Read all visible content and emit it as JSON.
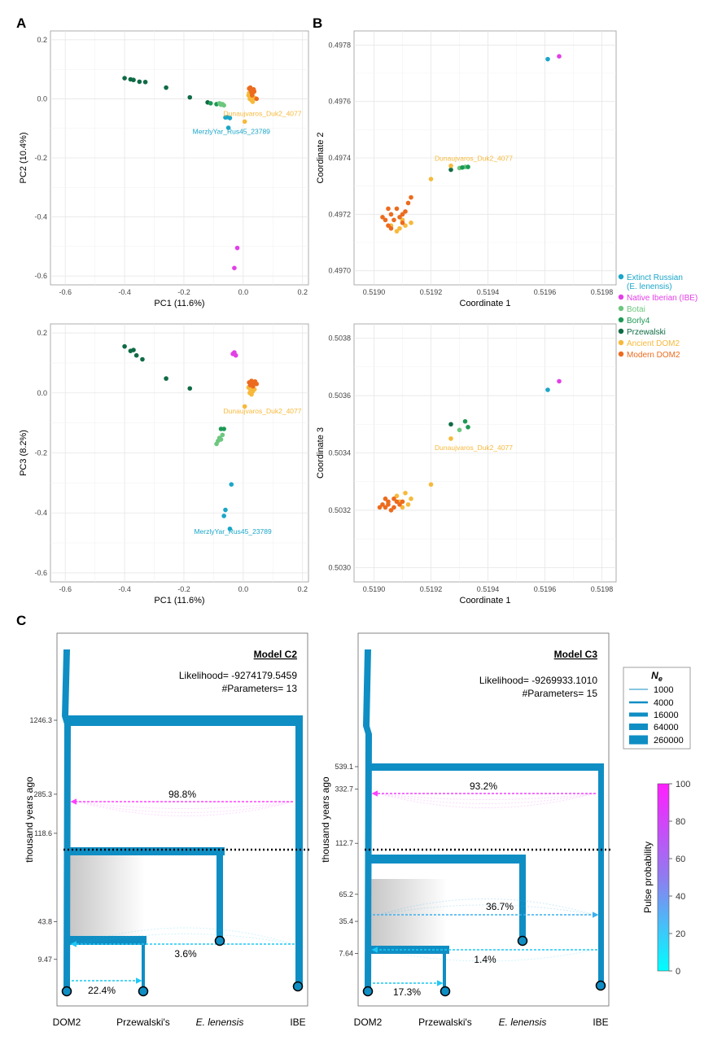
{
  "panel_labels": {
    "a": "A",
    "b": "B",
    "c": "C"
  },
  "legend": {
    "items": [
      {
        "label": "Extinct Russian",
        "label2": "(E. lenensis)",
        "color": "#1aa6c8"
      },
      {
        "label": "Native Iberian (IBE)",
        "color": "#e23fe6"
      },
      {
        "label": "Botai",
        "color": "#6dc77f"
      },
      {
        "label": "Borly4",
        "color": "#1d9a55"
      },
      {
        "label": "Przewalski",
        "color": "#0f6b45"
      },
      {
        "label": "Ancient DOM2",
        "color": "#f7b93b"
      },
      {
        "label": "Modern DOM2",
        "color": "#ec6b1e"
      }
    ]
  },
  "chart_data": [
    {
      "id": "pca12",
      "type": "scatter",
      "xlabel": "PC1 (11.6%)",
      "ylabel": "PC2 (10.4%)",
      "xlim": [
        -0.65,
        0.22
      ],
      "ylim": [
        -0.63,
        0.23
      ],
      "xticks": [
        -0.6,
        -0.4,
        -0.2,
        0.0,
        0.2
      ],
      "yticks": [
        0.2,
        0.0,
        -0.2,
        -0.4,
        -0.6
      ],
      "xtick_labels": [
        "-0.6",
        "-0.4",
        "-0.2",
        "0.0",
        "0.2"
      ],
      "ytick_labels": [
        "0.2",
        "0.0",
        "-0.2",
        "-0.4",
        "-0.6"
      ],
      "annotations": [
        {
          "text": "Dunaujvaros_Duk2_4077",
          "x": 0.065,
          "y": -0.058,
          "color": "#f7b93b"
        },
        {
          "text": "MerzlyYar_Rus45_23789",
          "x": -0.04,
          "y": -0.118,
          "color": "#1aa6c8"
        }
      ],
      "series": [
        {
          "name": "Przewalski",
          "color": "#0f6b45",
          "points": [
            [
              -0.4,
              0.07
            ],
            [
              -0.38,
              0.066
            ],
            [
              -0.37,
              0.064
            ],
            [
              -0.35,
              0.058
            ],
            [
              -0.33,
              0.057
            ],
            [
              -0.26,
              0.038
            ],
            [
              -0.18,
              0.005
            ],
            [
              -0.12,
              -0.012
            ]
          ]
        },
        {
          "name": "Borly4",
          "color": "#1d9a55",
          "points": [
            [
              -0.11,
              -0.015
            ],
            [
              -0.09,
              -0.018
            ]
          ]
        },
        {
          "name": "Botai",
          "color": "#6dc77f",
          "points": [
            [
              -0.08,
              -0.015
            ],
            [
              -0.075,
              -0.02
            ],
            [
              -0.07,
              -0.018
            ],
            [
              -0.065,
              -0.022
            ]
          ]
        },
        {
          "name": "Extinct Russian",
          "color": "#1aa6c8",
          "points": [
            [
              -0.06,
              -0.063
            ],
            [
              -0.055,
              -0.062
            ],
            [
              -0.045,
              -0.065
            ],
            [
              -0.05,
              -0.098
            ]
          ]
        },
        {
          "name": "Native Iberian (IBE)",
          "color": "#e23fe6",
          "points": [
            [
              -0.02,
              -0.505
            ],
            [
              -0.03,
              -0.573
            ]
          ]
        },
        {
          "name": "Ancient DOM2",
          "color": "#f7b93b",
          "points": [
            [
              0.005,
              -0.077
            ],
            [
              0.02,
              0.02
            ],
            [
              0.025,
              0.01
            ],
            [
              0.03,
              0.015
            ],
            [
              0.035,
              0.005
            ],
            [
              0.028,
              -0.005
            ],
            [
              0.022,
              0.0
            ],
            [
              0.032,
              -0.01
            ],
            [
              0.04,
              0.002
            ],
            [
              0.018,
              0.012
            ]
          ]
        },
        {
          "name": "Modern DOM2",
          "color": "#ec6b1e",
          "points": [
            [
              0.02,
              0.035
            ],
            [
              0.025,
              0.03
            ],
            [
              0.03,
              0.028
            ],
            [
              0.035,
              0.032
            ],
            [
              0.028,
              0.022
            ],
            [
              0.032,
              0.02
            ],
            [
              0.037,
              0.025
            ],
            [
              0.045,
              0.0
            ],
            [
              0.024,
              0.038
            ],
            [
              0.03,
              0.012
            ]
          ]
        }
      ]
    },
    {
      "id": "mds12",
      "type": "scatter",
      "xlabel": "Coordinate 1",
      "ylabel": "Coordinate 2",
      "xlim": [
        0.51893,
        0.51985
      ],
      "ylim": [
        0.49695,
        0.49785
      ],
      "xticks": [
        0.519,
        0.5192,
        0.5194,
        0.5196,
        0.5198
      ],
      "yticks": [
        0.4978,
        0.4976,
        0.4974,
        0.4972,
        0.497
      ],
      "xtick_labels": [
        "0.5190",
        "0.5192",
        "0.5194",
        "0.5196",
        "0.5198"
      ],
      "ytick_labels": [
        "0.4978",
        "0.4976",
        "0.4974",
        "0.4972",
        "0.4970"
      ],
      "annotations": [
        {
          "text": "Dunaujvaros_Duk2_4077",
          "x": 0.51935,
          "y": 0.49739,
          "color": "#f7b93b"
        }
      ],
      "series": [
        {
          "name": "Extinct Russian",
          "color": "#1aa6c8",
          "points": [
            [
              0.51961,
              0.49775
            ]
          ]
        },
        {
          "name": "Native Iberian (IBE)",
          "color": "#e23fe6",
          "points": [
            [
              0.51965,
              0.49776
            ]
          ]
        },
        {
          "name": "Botai",
          "color": "#6dc77f",
          "points": [
            [
              0.5193,
              0.497364
            ],
            [
              0.51932,
              0.497368
            ]
          ]
        },
        {
          "name": "Borly4",
          "color": "#1d9a55",
          "points": [
            [
              0.51931,
              0.497366
            ],
            [
              0.51933,
              0.497368
            ]
          ]
        },
        {
          "name": "Przewalski",
          "color": "#0f6b45",
          "points": [
            [
              0.51927,
              0.497358
            ]
          ]
        },
        {
          "name": "Ancient DOM2",
          "color": "#f7b93b",
          "points": [
            [
              0.51927,
              0.497372
            ],
            [
              0.5192,
              0.497325
            ],
            [
              0.51909,
              0.49715
            ],
            [
              0.51911,
              0.49716
            ],
            [
              0.51913,
              0.49717
            ],
            [
              0.51906,
              0.49716
            ],
            [
              0.5191,
              0.49718
            ],
            [
              0.51908,
              0.49714
            ]
          ]
        },
        {
          "name": "Modern DOM2",
          "color": "#ec6b1e",
          "points": [
            [
              0.51904,
              0.49718
            ],
            [
              0.51906,
              0.4972
            ],
            [
              0.51908,
              0.49722
            ],
            [
              0.5191,
              0.4972
            ],
            [
              0.51912,
              0.49724
            ],
            [
              0.51905,
              0.49716
            ],
            [
              0.51907,
              0.49718
            ],
            [
              0.51909,
              0.49719
            ],
            [
              0.51911,
              0.49721
            ],
            [
              0.51903,
              0.49719
            ],
            [
              0.51906,
              0.49715
            ],
            [
              0.51913,
              0.49726
            ],
            [
              0.51905,
              0.49722
            ],
            [
              0.5191,
              0.49717
            ]
          ]
        }
      ]
    },
    {
      "id": "pca13",
      "type": "scatter",
      "xlabel": "PC1 (11.6%)",
      "ylabel": "PC3 (8.2%)",
      "xlim": [
        -0.65,
        0.22
      ],
      "ylim": [
        -0.63,
        0.23
      ],
      "xticks": [
        -0.6,
        -0.4,
        -0.2,
        0.0,
        0.2
      ],
      "yticks": [
        0.2,
        0.0,
        -0.2,
        -0.4,
        -0.6
      ],
      "xtick_labels": [
        "-0.6",
        "-0.4",
        "-0.2",
        "0.0",
        "0.2"
      ],
      "ytick_labels": [
        "0.2",
        "0.0",
        "-0.2",
        "-0.4",
        "-0.6"
      ],
      "annotations": [
        {
          "text": "Dunaujvaros_Duk2_4077",
          "x": 0.065,
          "y": -0.068,
          "color": "#f7b93b"
        },
        {
          "text": "MerzlyYar_Rus45_23789",
          "x": -0.035,
          "y": -0.47,
          "color": "#1aa6c8"
        }
      ],
      "series": [
        {
          "name": "Przewalski",
          "color": "#0f6b45",
          "points": [
            [
              -0.4,
              0.155
            ],
            [
              -0.38,
              0.14
            ],
            [
              -0.37,
              0.143
            ],
            [
              -0.36,
              0.125
            ],
            [
              -0.34,
              0.112
            ],
            [
              -0.26,
              0.048
            ],
            [
              -0.18,
              0.015
            ]
          ]
        },
        {
          "name": "Borly4",
          "color": "#1d9a55",
          "points": [
            [
              -0.075,
              -0.12
            ],
            [
              -0.065,
              -0.12
            ]
          ]
        },
        {
          "name": "Botai",
          "color": "#6dc77f",
          "points": [
            [
              -0.08,
              -0.15
            ],
            [
              -0.09,
              -0.17
            ],
            [
              -0.085,
              -0.16
            ],
            [
              -0.075,
              -0.155
            ],
            [
              -0.07,
              -0.14
            ]
          ]
        },
        {
          "name": "Extinct Russian",
          "color": "#1aa6c8",
          "points": [
            [
              -0.04,
              -0.305
            ],
            [
              -0.06,
              -0.39
            ],
            [
              -0.065,
              -0.41
            ],
            [
              -0.045,
              -0.453
            ]
          ]
        },
        {
          "name": "Native Iberian (IBE)",
          "color": "#e23fe6",
          "points": [
            [
              -0.03,
              0.135
            ],
            [
              -0.025,
              0.125
            ],
            [
              -0.035,
              0.13
            ]
          ]
        },
        {
          "name": "Ancient DOM2",
          "color": "#f7b93b",
          "points": [
            [
              0.005,
              -0.045
            ],
            [
              0.02,
              0.02
            ],
            [
              0.025,
              0.01
            ],
            [
              0.03,
              0.015
            ],
            [
              0.022,
              0.0
            ],
            [
              0.032,
              0.005
            ],
            [
              0.028,
              -0.005
            ],
            [
              0.038,
              0.012
            ],
            [
              0.018,
              0.018
            ],
            [
              0.026,
              0.024
            ]
          ]
        },
        {
          "name": "Modern DOM2",
          "color": "#ec6b1e",
          "points": [
            [
              0.02,
              0.035
            ],
            [
              0.025,
              0.03
            ],
            [
              0.03,
              0.028
            ],
            [
              0.035,
              0.032
            ],
            [
              0.028,
              0.04
            ],
            [
              0.04,
              0.038
            ],
            [
              0.045,
              0.03
            ],
            [
              0.033,
              0.022
            ],
            [
              0.024,
              0.026
            ]
          ]
        }
      ]
    },
    {
      "id": "mds13",
      "type": "scatter",
      "xlabel": "Coordinate 1",
      "ylabel": "Coordinate 3",
      "xlim": [
        0.51893,
        0.51985
      ],
      "ylim": [
        0.50295,
        0.50385
      ],
      "xticks": [
        0.519,
        0.5192,
        0.5194,
        0.5196,
        0.5198
      ],
      "yticks": [
        0.5038,
        0.5036,
        0.5034,
        0.5032,
        0.503
      ],
      "xtick_labels": [
        "0.5190",
        "0.5192",
        "0.5194",
        "0.5196",
        "0.5198"
      ],
      "ytick_labels": [
        "0.5038",
        "0.5036",
        "0.5034",
        "0.5032",
        "0.5030"
      ],
      "annotations": [
        {
          "text": "Dunaujvaros_Duk2_4077",
          "x": 0.51935,
          "y": 0.50341,
          "color": "#f7b93b"
        }
      ],
      "series": [
        {
          "name": "Extinct Russian",
          "color": "#1aa6c8",
          "points": [
            [
              0.51961,
              0.50362
            ]
          ]
        },
        {
          "name": "Native Iberian (IBE)",
          "color": "#e23fe6",
          "points": [
            [
              0.51965,
              0.50365
            ]
          ]
        },
        {
          "name": "Botai",
          "color": "#6dc77f",
          "points": [
            [
              0.5193,
              0.50348
            ]
          ]
        },
        {
          "name": "Borly4",
          "color": "#1d9a55",
          "points": [
            [
              0.51932,
              0.50351
            ],
            [
              0.51933,
              0.50349
            ]
          ]
        },
        {
          "name": "Przewalski",
          "color": "#0f6b45",
          "points": [
            [
              0.51927,
              0.5035
            ]
          ]
        },
        {
          "name": "Ancient DOM2",
          "color": "#f7b93b",
          "points": [
            [
              0.51927,
              0.50345
            ],
            [
              0.5192,
              0.50329
            ],
            [
              0.51911,
              0.50326
            ],
            [
              0.51909,
              0.50323
            ],
            [
              0.51913,
              0.50324
            ],
            [
              0.5191,
              0.50321
            ],
            [
              0.51908,
              0.50325
            ],
            [
              0.51912,
              0.50322
            ]
          ]
        },
        {
          "name": "Modern DOM2",
          "color": "#ec6b1e",
          "points": [
            [
              0.51903,
              0.50322
            ],
            [
              0.51905,
              0.50323
            ],
            [
              0.51907,
              0.50321
            ],
            [
              0.51909,
              0.50322
            ],
            [
              0.51904,
              0.50324
            ],
            [
              0.51906,
              0.5032
            ],
            [
              0.51908,
              0.50323
            ],
            [
              0.51902,
              0.50321
            ],
            [
              0.51905,
              0.50322
            ],
            [
              0.51907,
              0.50324
            ],
            [
              0.5191,
              0.50323
            ],
            [
              0.51904,
              0.50321
            ]
          ]
        }
      ]
    }
  ],
  "models": [
    {
      "id": "c2",
      "title": "Model C2",
      "likelihood": "Likelihood= -9274179.5459",
      "params": "#Parameters= 13",
      "ylabel": "thousand years ago",
      "ticks": [
        {
          "label": "1246.3",
          "pos": 0.0
        },
        {
          "label": "285.3",
          "pos": 0.284
        },
        {
          "label": "118.6",
          "pos": 0.434
        },
        {
          "label": "43.8",
          "pos": 0.773
        },
        {
          "label": "9.47",
          "pos": 0.918
        }
      ],
      "taxa": [
        "DOM2",
        "Przewalski's",
        "E. lenensis",
        "IBE"
      ],
      "pulses": [
        {
          "label": "98.8%",
          "color": "#ff40ff",
          "prob": 98.8
        },
        {
          "label": "3.6%",
          "color": "#1ec8f5",
          "prob": 3.6
        },
        {
          "label": "22.4%",
          "color": "#19c8f0",
          "prob": 22.4
        }
      ]
    },
    {
      "id": "c3",
      "title": "Model C3",
      "likelihood": "Likelihood= -9269933.1010",
      "params": "#Parameters= 15",
      "ylabel": "thousand years ago",
      "ticks": [
        {
          "label": "539.1",
          "pos": 0.0
        },
        {
          "label": "332.7",
          "pos": 0.1
        },
        {
          "label": "112.7",
          "pos": 0.34
        },
        {
          "label": "65.2",
          "pos": 0.566
        },
        {
          "label": "35.4",
          "pos": 0.686
        },
        {
          "label": "7.64",
          "pos": 0.828
        }
      ],
      "taxa": [
        "DOM2",
        "Przewalski's",
        "E. lenensis",
        "IBE"
      ],
      "pulses": [
        {
          "label": "93.2%",
          "color": "#f040ff",
          "prob": 93.2
        },
        {
          "label": "36.7%",
          "color": "#3cb0f0",
          "prob": 36.7
        },
        {
          "label": "1.4%",
          "color": "#1ec8f5",
          "prob": 1.4
        },
        {
          "label": "17.3%",
          "color": "#19c8f0",
          "prob": 17.3
        }
      ]
    }
  ],
  "ne_legend": {
    "title": "N",
    "subscript": "e",
    "values": [
      "1000",
      "4000",
      "16000",
      "64000",
      "260000"
    ]
  },
  "colorbar": {
    "title": "Pulse probability",
    "ticks": [
      "100",
      "80",
      "60",
      "40",
      "20",
      "0"
    ]
  }
}
